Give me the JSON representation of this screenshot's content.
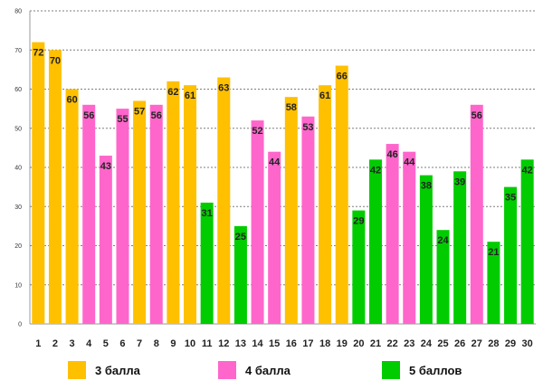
{
  "chart_data": {
    "type": "bar",
    "categories": [
      "1",
      "2",
      "3",
      "4",
      "5",
      "6",
      "7",
      "8",
      "9",
      "10",
      "11",
      "12",
      "13",
      "14",
      "15",
      "16",
      "17",
      "18",
      "19",
      "20",
      "21",
      "22",
      "23",
      "24",
      "25",
      "26",
      "27",
      "28",
      "29",
      "30"
    ],
    "values": [
      72,
      70,
      60,
      56,
      43,
      55,
      57,
      56,
      62,
      61,
      31,
      63,
      25,
      52,
      44,
      58,
      53,
      61,
      66,
      29,
      42,
      46,
      44,
      38,
      24,
      39,
      56,
      21,
      35,
      42
    ],
    "groups": [
      0,
      0,
      0,
      1,
      1,
      1,
      0,
      1,
      0,
      0,
      2,
      0,
      2,
      1,
      1,
      0,
      1,
      0,
      0,
      2,
      2,
      1,
      1,
      2,
      2,
      2,
      1,
      2,
      2,
      2
    ],
    "ylim": [
      0,
      80
    ],
    "yticks": [
      0,
      10,
      20,
      30,
      40,
      50,
      60,
      70,
      80
    ],
    "grid": true,
    "legend_placement": "bottom",
    "series": [
      {
        "name": "3 балла",
        "color": "#FFC000"
      },
      {
        "name": "4 балла",
        "color": "#FF66CC"
      },
      {
        "name": "5 баллов",
        "color": "#00CC00"
      }
    ],
    "title": "",
    "xlabel": "",
    "ylabel": ""
  }
}
